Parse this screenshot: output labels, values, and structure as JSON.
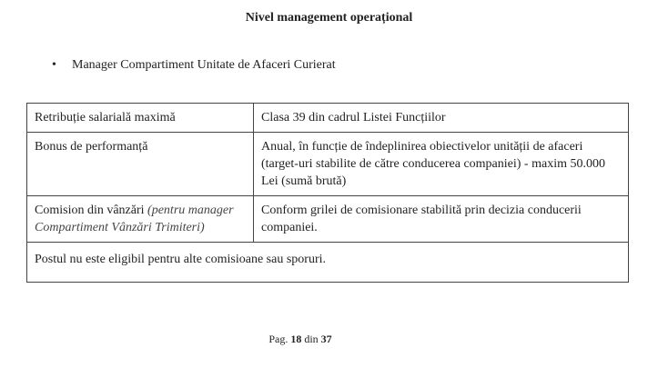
{
  "title": "Nivel management operațional",
  "bullet": "Manager Compartiment Unitate de Afaceri Curierat",
  "table": [
    {
      "label": "Retribuție salarială maximă",
      "value": "Clasa 39 din cadrul Listei Funcțiilor"
    },
    {
      "label": "Bonus de performanță",
      "value": "Anual, în funcție de îndeplinirea obiectivelor unității de afaceri (target-uri stabilite de către conducerea companiei) - maxim 50.000 Lei (sumă brută)"
    },
    {
      "label": "Comision din vânzări",
      "label_note": "(pentru manager Compartiment Vânzări Trimiteri)",
      "value": "Conform grilei de comisionare stabilită prin decizia conducerii companiei."
    }
  ],
  "note": "Postul nu este eligibil pentru alte comisioane sau sporuri.",
  "footer": {
    "prefix": "Pag.",
    "page": "18",
    "sep": "din",
    "total": "37"
  }
}
